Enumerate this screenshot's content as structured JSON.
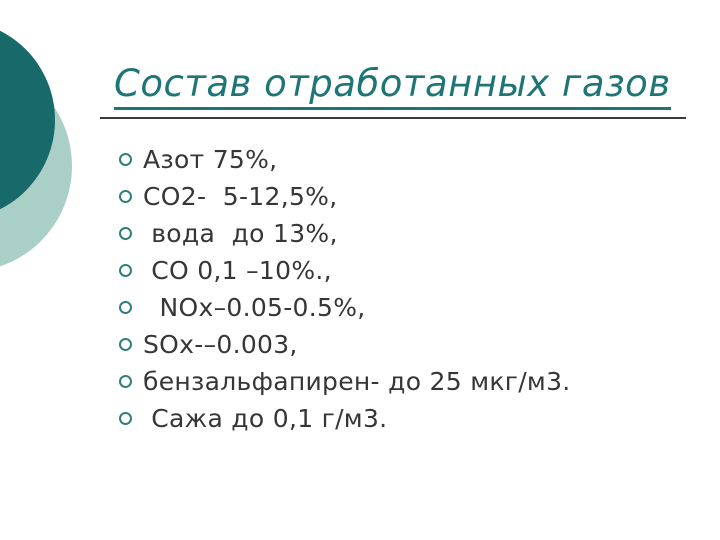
{
  "slide": {
    "title": "Состав отработанных газов",
    "bullets": [
      "Азот 75%,",
      "СО2-  5-12,5%,",
      " вода  до 13%,",
      " СО 0,1 –10%.,",
      "  NOx–0.05-0.5%,",
      "SOx-–0.003,",
      "бензальфапирен- до 25 мкг/м3.",
      " Сажа до 0,1 г/м3."
    ],
    "colors": {
      "title": "#1e7575",
      "body_text": "#363636",
      "bullet_outline": "#2e7f7a",
      "circle_dark": "#17696a",
      "circle_light": "#a9cfc7",
      "separator": "#3b3b3b",
      "background": "#ffffff"
    }
  }
}
